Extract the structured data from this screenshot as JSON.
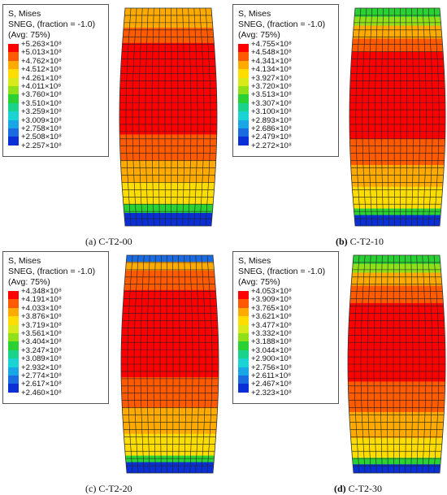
{
  "colors": [
    "#ff0000",
    "#ff5a00",
    "#ffaa00",
    "#ffdd00",
    "#d9ea1a",
    "#8fe019",
    "#2ad132",
    "#19d38d",
    "#1ad3d3",
    "#19a6e6",
    "#1a6ae0",
    "#0a2fd5"
  ],
  "legend_header": {
    "line1": "S, Mises",
    "line2": "SNEG, (fraction = -1.0)",
    "line3": "(Avg: 75%)"
  },
  "panels": [
    {
      "caption_letter": "(a)",
      "caption_name": "C-T2-00",
      "values": [
        "+5.263×10⁸",
        "+5.013×10⁸",
        "+4.762×10⁸",
        "+4.512×10⁸",
        "+4.261×10⁸",
        "+4.011×10⁸",
        "+3.760×10⁸",
        "+3.510×10⁸",
        "+3.259×10⁸",
        "+3.009×10⁸",
        "+2.758×10⁸",
        "+2.508×10⁸",
        "+2.257×10⁸"
      ],
      "bands": [
        {
          "until": 0.03,
          "color": "#ffaa00"
        },
        {
          "until": 0.09,
          "color": "#ffaa00"
        },
        {
          "until": 0.16,
          "color": "#ff5a00"
        },
        {
          "until": 0.58,
          "color": "#ff0000"
        },
        {
          "until": 0.7,
          "color": "#ff5a00"
        },
        {
          "until": 0.8,
          "color": "#ffaa00"
        },
        {
          "until": 0.9,
          "color": "#ffdd00"
        },
        {
          "until": 0.94,
          "color": "#2ad132"
        },
        {
          "until": 1.0,
          "color": "#0a2fd5"
        }
      ]
    },
    {
      "caption_letter": "(b)",
      "caption_name": "C-T2-10",
      "values": [
        "+4.755×10⁸",
        "+4.548×10⁸",
        "+4.341×10⁸",
        "+4.134×10⁸",
        "+3.927×10⁸",
        "+3.720×10⁸",
        "+3.513×10⁸",
        "+3.307×10⁸",
        "+3.100×10⁸",
        "+2.893×10⁸",
        "+2.686×10⁸",
        "+2.479×10⁸",
        "+2.272×10⁸"
      ],
      "bands": [
        {
          "until": 0.04,
          "color": "#2ad132"
        },
        {
          "until": 0.08,
          "color": "#8fe019"
        },
        {
          "until": 0.14,
          "color": "#ffaa00"
        },
        {
          "until": 0.2,
          "color": "#ff5a00"
        },
        {
          "until": 0.6,
          "color": "#ff0000"
        },
        {
          "until": 0.72,
          "color": "#ff5a00"
        },
        {
          "until": 0.82,
          "color": "#ffaa00"
        },
        {
          "until": 0.92,
          "color": "#ffdd00"
        },
        {
          "until": 0.95,
          "color": "#2ad132"
        },
        {
          "until": 1.0,
          "color": "#0a2fd5"
        }
      ]
    },
    {
      "caption_letter": "(c)",
      "caption_name": "C-T2-20",
      "values": [
        "+4.348×10⁸",
        "+4.191×10⁸",
        "+4.033×10⁸",
        "+3.876×10⁸",
        "+3.719×10⁸",
        "+3.561×10⁸",
        "+3.404×10⁸",
        "+3.247×10⁸",
        "+3.089×10⁸",
        "+2.932×10⁸",
        "+2.774×10⁸",
        "+2.617×10⁸",
        "+2.460×10⁸"
      ],
      "bands": [
        {
          "until": 0.03,
          "color": "#1a6ae0"
        },
        {
          "until": 0.07,
          "color": "#ffaa00"
        },
        {
          "until": 0.16,
          "color": "#ff5a00"
        },
        {
          "until": 0.56,
          "color": "#ff0000"
        },
        {
          "until": 0.7,
          "color": "#ff5a00"
        },
        {
          "until": 0.82,
          "color": "#ffaa00"
        },
        {
          "until": 0.92,
          "color": "#ffdd00"
        },
        {
          "until": 0.95,
          "color": "#2ad132"
        },
        {
          "until": 1.0,
          "color": "#0a2fd5"
        }
      ]
    },
    {
      "caption_letter": "(d)",
      "caption_name": "C-T2-30",
      "values": [
        "+4.053×10⁸",
        "+3.909×10⁸",
        "+3.765×10⁸",
        "+3.621×10⁸",
        "+3.477×10⁸",
        "+3.332×10⁸",
        "+3.188×10⁸",
        "+3.044×10⁸",
        "+2.900×10⁸",
        "+2.756×10⁸",
        "+2.611×10⁸",
        "+2.467×10⁸",
        "+2.323×10⁸"
      ],
      "bands": [
        {
          "until": 0.04,
          "color": "#2ad132"
        },
        {
          "until": 0.08,
          "color": "#8fe019"
        },
        {
          "until": 0.14,
          "color": "#ffaa00"
        },
        {
          "until": 0.22,
          "color": "#ff5a00"
        },
        {
          "until": 0.58,
          "color": "#ff0000"
        },
        {
          "until": 0.72,
          "color": "#ff5a00"
        },
        {
          "until": 0.84,
          "color": "#ffaa00"
        },
        {
          "until": 0.93,
          "color": "#ffdd00"
        },
        {
          "until": 0.96,
          "color": "#2ad132"
        },
        {
          "until": 1.0,
          "color": "#0a2fd5"
        }
      ]
    }
  ]
}
